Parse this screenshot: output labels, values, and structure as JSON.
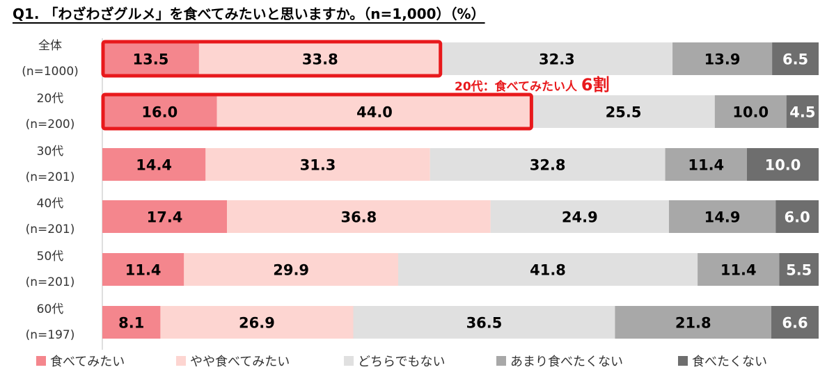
{
  "title": "Q1. 「わざわざグルメ」を食べてみたいと思いますか。（n=1,000）（%）",
  "chart_data": {
    "type": "bar",
    "stacked": true,
    "orientation": "horizontal",
    "normalized_percent": true,
    "categories": [
      {
        "name": "全体",
        "n": "(n=1000)"
      },
      {
        "name": "20代",
        "n": "(n=200)"
      },
      {
        "name": "30代",
        "n": "(n=201)"
      },
      {
        "name": "40代",
        "n": "(n=201)"
      },
      {
        "name": "50代",
        "n": "(n=201)"
      },
      {
        "name": "60代",
        "n": "(n=197)"
      }
    ],
    "series": [
      {
        "name": "食べてみたい",
        "color": "#f4868d",
        "values": [
          13.5,
          16.0,
          14.4,
          17.4,
          11.4,
          8.1
        ]
      },
      {
        "name": "やや食べてみたい",
        "color": "#fdd5d1",
        "values": [
          33.8,
          44.0,
          31.3,
          36.8,
          29.9,
          26.9
        ]
      },
      {
        "name": "どちらでもない",
        "color": "#e0e0e0",
        "values": [
          32.3,
          25.5,
          32.8,
          24.9,
          41.8,
          36.5
        ]
      },
      {
        "name": "あまり食べたくない",
        "color": "#a8a8a8",
        "values": [
          13.9,
          10.0,
          11.4,
          14.9,
          11.4,
          21.8
        ]
      },
      {
        "name": "食べたくない",
        "color": "#6e6e6e",
        "values": [
          6.5,
          4.5,
          10.0,
          6.0,
          5.5,
          6.6
        ]
      }
    ],
    "label_colors": [
      "#000000",
      "#000000",
      "#000000",
      "#000000",
      "#ffffff"
    ],
    "highlight_color": "#e8191c",
    "highlights": [
      {
        "category_index": 0,
        "series_span": [
          0,
          1
        ]
      },
      {
        "category_index": 1,
        "series_span": [
          0,
          1
        ]
      }
    ],
    "annotation": {
      "text": "20代：食べてみたい人",
      "emphasis": "6割",
      "category_index": 1
    },
    "legend_position": "bottom",
    "grid": false
  }
}
